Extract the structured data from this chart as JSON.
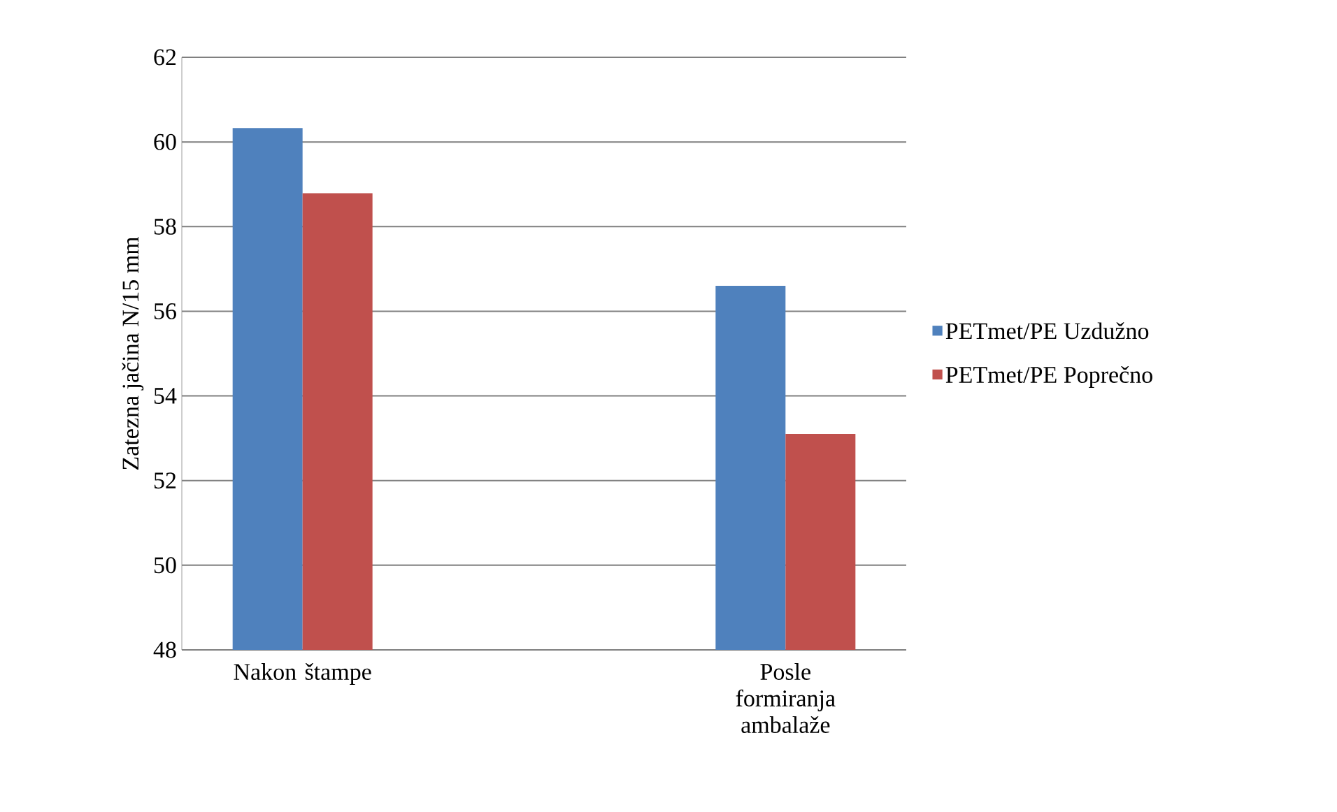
{
  "chart_data": {
    "type": "bar",
    "ylabel": "Zatezna jačina N/15 mm",
    "categories": [
      "Nakon štampe",
      null,
      "Posle formiranja ambalaže"
    ],
    "series": [
      {
        "name": "PETmet/PE Uzdužno",
        "color": "#4f81bd",
        "values": [
          60.33,
          null,
          56.6
        ]
      },
      {
        "name": "PETmet/PE Poprečno",
        "color": "#c0504d",
        "values": [
          58.79,
          null,
          53.1
        ]
      }
    ],
    "ylim": [
      48,
      62
    ],
    "yticks": [
      48,
      50,
      52,
      54,
      56,
      58,
      60,
      62
    ],
    "grid": "y",
    "legend": "right"
  }
}
